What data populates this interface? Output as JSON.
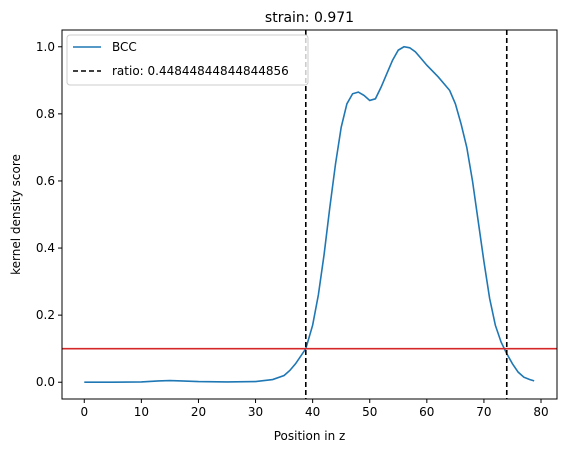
{
  "chart_data": {
    "type": "line",
    "title": "strain: 0.971",
    "xlabel": "Position in z",
    "ylabel": "kernel density score",
    "xlim": [
      -3.9,
      82.8
    ],
    "ylim": [
      -0.05,
      1.05
    ],
    "xticks": [
      0,
      10,
      20,
      30,
      40,
      50,
      60,
      70,
      80
    ],
    "yticks": [
      0.0,
      0.2,
      0.4,
      0.6,
      0.8,
      1.0
    ],
    "xtick_labels": [
      "0",
      "10",
      "20",
      "30",
      "40",
      "50",
      "60",
      "70",
      "80"
    ],
    "ytick_labels": [
      "0.0",
      "0.2",
      "0.4",
      "0.6",
      "0.8",
      "1.0"
    ],
    "grid": false,
    "legend_position": "top-left",
    "series": [
      {
        "name": "BCC",
        "color": "#1f77b4",
        "x": [
          0,
          5,
          10,
          13,
          15,
          17,
          20,
          25,
          30,
          33,
          35,
          36,
          37,
          38,
          38.8,
          40,
          41,
          42,
          43,
          44,
          45,
          46,
          47,
          48,
          49,
          50,
          51,
          52,
          53,
          54,
          55,
          56,
          57,
          58,
          59,
          60,
          62,
          64,
          65,
          66,
          67,
          68,
          69,
          70,
          71,
          72,
          73,
          74,
          75,
          76,
          77,
          78,
          78.8
        ],
        "y": [
          0.0,
          0.0,
          0.001,
          0.004,
          0.005,
          0.004,
          0.002,
          0.001,
          0.002,
          0.008,
          0.02,
          0.035,
          0.055,
          0.08,
          0.1,
          0.17,
          0.26,
          0.38,
          0.52,
          0.65,
          0.76,
          0.83,
          0.86,
          0.865,
          0.855,
          0.84,
          0.845,
          0.88,
          0.92,
          0.96,
          0.99,
          1.0,
          0.997,
          0.985,
          0.965,
          0.945,
          0.91,
          0.87,
          0.83,
          0.77,
          0.7,
          0.6,
          0.48,
          0.36,
          0.25,
          0.17,
          0.12,
          0.085,
          0.055,
          0.03,
          0.015,
          0.008,
          0.004
        ]
      }
    ],
    "vlines": {
      "label": "ratio: 0.44844844844844856",
      "color": "#000000",
      "style": "dashed",
      "x": [
        38.8,
        74.0
      ]
    },
    "hline": {
      "y": 0.1,
      "color": "#d62728"
    }
  }
}
